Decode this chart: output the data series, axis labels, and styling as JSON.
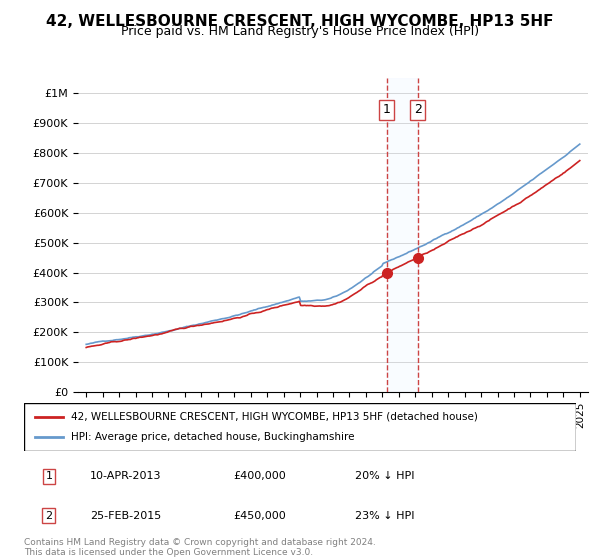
{
  "title": "42, WELLESBOURNE CRESCENT, HIGH WYCOMBE, HP13 5HF",
  "subtitle": "Price paid vs. HM Land Registry's House Price Index (HPI)",
  "hpi_color": "#6699cc",
  "price_color": "#cc2222",
  "annotation_color_bg": "#ddeeff",
  "annotation_border": "#cc4444",
  "marker1_year": 2013.27,
  "marker1_label": "1",
  "marker1_price": 400000,
  "marker2_year": 2015.15,
  "marker2_label": "2",
  "marker2_price": 450000,
  "xlabel": "",
  "ylabel": "",
  "ylim": [
    0,
    1050000
  ],
  "xlim": [
    1994.5,
    2025.5
  ],
  "footer": "Contains HM Land Registry data © Crown copyright and database right 2024.\nThis data is licensed under the Open Government Licence v3.0.",
  "legend_entries": [
    "42, WELLESBOURNE CRESCENT, HIGH WYCOMBE, HP13 5HF (detached house)",
    "HPI: Average price, detached house, Buckinghamshire"
  ],
  "table_rows": [
    [
      "1",
      "10-APR-2013",
      "£400,000",
      "20% ↓ HPI"
    ],
    [
      "2",
      "25-FEB-2015",
      "£450,000",
      "23% ↓ HPI"
    ]
  ]
}
